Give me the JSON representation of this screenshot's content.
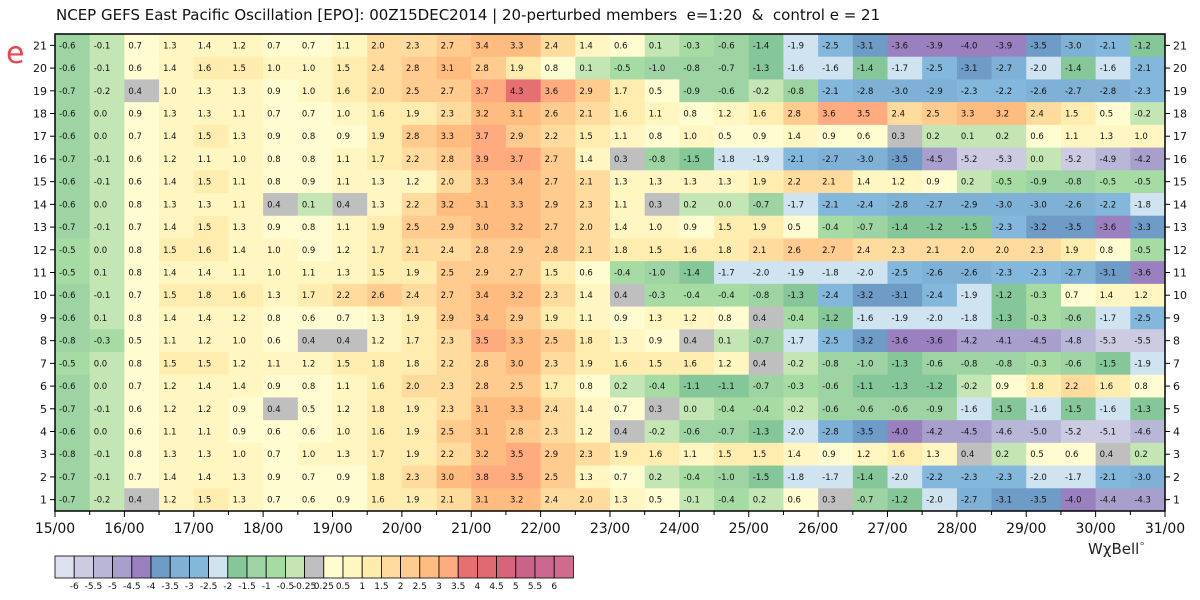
{
  "title": "NCEP GEFS East Pacific Oscillation [EPO]: 00Z15DEC2014 | 20-perturbed members  e=1:20  &  control e = 21",
  "y_axis_label": "e",
  "credit": {
    "text": "WχBell",
    "dot": "°"
  },
  "chart_data": {
    "type": "heatmap",
    "title": "NCEP GEFS East Pacific Oscillation [EPO]: 00Z15DEC2014 | 20-perturbed members  e=1:20  &  control e = 21",
    "xlabel": "",
    "ylabel": "e",
    "x_tick_labels": [
      "15/00",
      "16/00",
      "17/00",
      "18/00",
      "19/00",
      "20/00",
      "21/00",
      "22/00",
      "23/00",
      "24/00",
      "25/00",
      "26/00",
      "27/00",
      "28/00",
      "29/00",
      "30/00",
      "31/00"
    ],
    "y_tick_labels": [
      "1",
      "2",
      "3",
      "4",
      "5",
      "6",
      "7",
      "8",
      "9",
      "10",
      "11",
      "12",
      "13",
      "14",
      "15",
      "16",
      "17",
      "18",
      "19",
      "20",
      "21"
    ],
    "columns_per_day": 2,
    "rows_top_to_bottom": [
      21,
      20,
      19,
      18,
      17,
      16,
      15,
      14,
      13,
      12,
      11,
      10,
      9,
      8,
      7,
      6,
      5,
      4,
      3,
      2,
      1
    ],
    "values": [
      [
        -0.6,
        -0.1,
        0.7,
        1.3,
        1.4,
        1.2,
        0.7,
        0.7,
        1.1,
        2.0,
        2.3,
        2.7,
        3.4,
        3.3,
        2.4,
        1.4,
        0.6,
        0.1,
        -0.3,
        -0.6,
        -1.4,
        -1.9,
        -2.5,
        -3.1,
        -3.6,
        -3.9,
        -4.0,
        -3.9,
        -3.5,
        -3.0,
        -2.1,
        -1.2
      ],
      [
        -0.6,
        -0.1,
        0.6,
        1.4,
        1.6,
        1.5,
        1.0,
        1.0,
        1.5,
        2.4,
        2.8,
        3.1,
        2.8,
        1.9,
        0.8,
        0.1,
        -0.5,
        -1.0,
        -0.8,
        -0.7,
        -1.3,
        -1.6,
        -1.6,
        -1.4,
        -1.7,
        -2.5,
        -3.1,
        -2.7,
        -2.0,
        -1.4,
        -1.6,
        -2.1
      ],
      [
        -0.7,
        -0.2,
        0.4,
        1.0,
        1.3,
        1.3,
        0.9,
        1.0,
        1.6,
        2.0,
        2.5,
        2.7,
        3.7,
        4.3,
        3.6,
        2.9,
        1.7,
        0.5,
        -0.9,
        -0.6,
        -0.2,
        -0.8,
        -2.1,
        -2.8,
        -3.0,
        -2.9,
        -2.3,
        -2.2,
        -2.6,
        -2.7,
        -2.8,
        -2.3
      ],
      [
        -0.6,
        0.0,
        0.9,
        1.3,
        1.3,
        1.1,
        0.7,
        0.7,
        1.0,
        1.6,
        1.9,
        2.3,
        3.2,
        3.1,
        2.6,
        2.1,
        1.6,
        1.1,
        0.8,
        1.2,
        1.6,
        2.8,
        3.6,
        3.5,
        2.4,
        2.5,
        3.3,
        3.2,
        2.4,
        1.5,
        0.5,
        -0.2
      ],
      [
        -0.6,
        -0.0,
        0.7,
        1.4,
        1.5,
        1.3,
        0.9,
        0.8,
        0.9,
        1.9,
        2.8,
        3.3,
        3.7,
        2.9,
        2.2,
        1.5,
        1.1,
        0.8,
        1.0,
        0.5,
        0.9,
        1.4,
        0.9,
        0.6,
        0.3,
        0.2,
        0.1,
        0.2,
        0.6,
        1.1,
        1.3,
        1.0
      ],
      [
        -0.7,
        -0.1,
        0.6,
        1.2,
        1.1,
        1.0,
        0.8,
        0.8,
        1.1,
        1.7,
        2.2,
        2.8,
        3.9,
        3.7,
        2.7,
        1.4,
        0.3,
        -0.8,
        -1.5,
        -1.8,
        -1.9,
        -2.1,
        -2.7,
        -3.0,
        -3.5,
        -4.5,
        -5.2,
        -5.3,
        0.0,
        -5.2,
        -4.9,
        -4.2
      ],
      [
        -0.6,
        -0.1,
        0.6,
        1.4,
        1.5,
        1.1,
        0.8,
        0.9,
        1.1,
        1.3,
        1.2,
        2.0,
        3.3,
        3.4,
        2.7,
        2.1,
        1.3,
        1.3,
        1.3,
        1.3,
        1.9,
        2.2,
        2.1,
        1.4,
        1.2,
        0.9,
        0.2,
        -0.5,
        -0.9,
        -0.8,
        -0.5,
        -0.5
      ],
      [
        -0.6,
        0.0,
        0.8,
        1.3,
        1.3,
        1.1,
        0.4,
        0.1,
        0.4,
        1.3,
        2.2,
        3.2,
        3.1,
        3.3,
        2.9,
        2.3,
        1.1,
        0.3,
        0.2,
        -0.0,
        -0.7,
        -1.7,
        -2.1,
        -2.4,
        -2.8,
        -2.7,
        -2.9,
        -3.0,
        -3.0,
        -2.6,
        -2.2,
        -1.8
      ],
      [
        -0.7,
        -0.1,
        0.7,
        1.4,
        1.5,
        1.3,
        0.9,
        0.8,
        1.1,
        1.9,
        2.5,
        2.9,
        3.0,
        3.2,
        2.7,
        2.0,
        1.4,
        1.0,
        0.9,
        1.5,
        1.9,
        0.5,
        -0.4,
        -0.7,
        -1.4,
        -1.2,
        -1.5,
        -2.3,
        -3.2,
        -3.5,
        -3.6,
        -3.3
      ],
      [
        -0.5,
        0.0,
        0.8,
        1.5,
        1.6,
        1.4,
        1.0,
        0.9,
        1.2,
        1.7,
        2.1,
        2.4,
        2.8,
        2.9,
        2.8,
        2.1,
        1.8,
        1.5,
        1.6,
        1.8,
        2.1,
        2.6,
        2.7,
        2.4,
        2.3,
        2.1,
        2.0,
        2.0,
        2.3,
        1.9,
        0.8,
        -0.5
      ],
      [
        -0.5,
        0.1,
        0.8,
        1.4,
        1.4,
        1.1,
        1.0,
        1.1,
        1.3,
        1.5,
        1.9,
        2.5,
        2.9,
        2.7,
        1.5,
        0.6,
        -0.4,
        -1.0,
        -1.4,
        -1.7,
        -2.0,
        -1.9,
        -1.8,
        -2.0,
        -2.5,
        -2.6,
        -2.6,
        -2.3,
        -2.3,
        -2.7,
        -3.1,
        -3.6
      ],
      [
        -0.6,
        -0.1,
        0.7,
        1.5,
        1.8,
        1.6,
        1.3,
        1.7,
        2.2,
        2.6,
        2.4,
        2.7,
        3.4,
        3.2,
        2.3,
        1.4,
        0.4,
        -0.3,
        -0.4,
        -0.4,
        -0.8,
        -1.3,
        -2.4,
        -3.2,
        -3.1,
        -2.4,
        -1.9,
        -1.2,
        -0.3,
        0.7,
        1.4,
        1.2
      ],
      [
        -0.6,
        0.1,
        0.8,
        1.4,
        1.4,
        1.2,
        0.8,
        0.6,
        0.7,
        1.3,
        1.9,
        2.9,
        3.4,
        2.9,
        1.9,
        1.1,
        0.9,
        1.3,
        1.2,
        0.8,
        0.4,
        -0.4,
        -1.2,
        -1.6,
        -1.9,
        -2.0,
        -1.8,
        -1.3,
        -0.3,
        -0.6,
        -1.7,
        -2.5
      ],
      [
        -0.8,
        -0.3,
        0.5,
        1.1,
        1.2,
        1.0,
        0.6,
        0.4,
        0.4,
        1.2,
        1.7,
        2.3,
        3.5,
        3.3,
        2.5,
        1.8,
        1.3,
        0.9,
        0.4,
        0.1,
        -0.7,
        -1.7,
        -2.5,
        -3.2,
        -3.6,
        -3.6,
        -4.2,
        -4.1,
        -4.5,
        -4.8,
        -5.3,
        -5.5
      ],
      [
        -0.5,
        -0.0,
        0.8,
        1.5,
        1.5,
        1.2,
        1.1,
        1.2,
        1.5,
        1.8,
        1.8,
        2.2,
        2.8,
        3.0,
        2.3,
        1.9,
        1.6,
        1.5,
        1.6,
        1.2,
        0.4,
        -0.2,
        -0.8,
        -1.0,
        -1.3,
        -0.6,
        -0.8,
        -0.8,
        -0.3,
        -0.6,
        -1.5,
        -1.9
      ],
      [
        -0.6,
        -0.0,
        0.7,
        1.2,
        1.4,
        1.4,
        0.9,
        0.8,
        1.1,
        1.6,
        2.0,
        2.3,
        2.8,
        2.5,
        1.7,
        0.8,
        0.2,
        -0.4,
        -1.1,
        -1.1,
        -0.7,
        -0.3,
        -0.6,
        -1.1,
        -1.3,
        -1.2,
        -0.2,
        0.9,
        1.8,
        2.2,
        1.6,
        0.8
      ],
      [
        -0.7,
        -0.1,
        0.6,
        1.2,
        1.2,
        0.9,
        0.4,
        0.5,
        1.2,
        1.8,
        1.9,
        2.3,
        3.1,
        3.3,
        2.4,
        1.4,
        0.7,
        0.3,
        -0.0,
        -0.4,
        -0.4,
        -0.2,
        -0.6,
        -0.6,
        -0.6,
        -0.9,
        -1.6,
        -1.5,
        -1.6,
        -1.5,
        -1.6,
        -1.3
      ],
      [
        -0.6,
        -0.0,
        0.6,
        1.1,
        1.1,
        0.9,
        0.6,
        0.6,
        1.0,
        1.6,
        1.9,
        2.5,
        3.1,
        2.8,
        2.3,
        1.2,
        0.4,
        -0.2,
        -0.6,
        -0.7,
        -1.3,
        -2.0,
        -2.8,
        -3.5,
        -4.0,
        -4.2,
        -4.5,
        -4.6,
        -5.0,
        -5.2,
        -5.1,
        -4.6
      ],
      [
        -0.8,
        -0.1,
        0.8,
        1.3,
        1.3,
        1.0,
        0.7,
        1.0,
        1.3,
        1.7,
        1.9,
        2.2,
        3.2,
        3.5,
        2.9,
        2.3,
        1.9,
        1.6,
        1.1,
        1.5,
        1.5,
        1.4,
        0.9,
        1.2,
        1.6,
        1.3,
        0.4,
        0.2,
        0.5,
        0.6,
        0.4,
        0.2
      ],
      [
        -0.7,
        -0.1,
        0.7,
        1.4,
        1.4,
        1.3,
        0.9,
        0.7,
        0.9,
        1.8,
        2.3,
        3.0,
        3.8,
        3.5,
        2.5,
        1.3,
        0.7,
        0.2,
        -0.4,
        -1.0,
        -1.5,
        -1.8,
        -1.7,
        -1.4,
        -2.0,
        -2.2,
        -2.3,
        -2.3,
        -2.0,
        -1.7,
        -2.1,
        -3.0
      ],
      [
        -0.7,
        -0.2,
        0.4,
        1.2,
        1.5,
        1.3,
        0.7,
        0.6,
        0.9,
        1.6,
        1.9,
        2.1,
        3.1,
        3.2,
        2.4,
        2.0,
        1.3,
        0.5,
        -0.1,
        -0.4,
        0.2,
        0.6,
        0.3,
        -0.7,
        -1.2,
        -2.0,
        -2.7,
        -3.1,
        -3.5,
        -4.0,
        -4.4,
        -4.3
      ]
    ],
    "colorbar": {
      "tick_labels": [
        "-6",
        "-5.5",
        "-5",
        "-4.5",
        "-4",
        "-3.5",
        "-3",
        "-2.5",
        "-2",
        "-1.5",
        "-1",
        "-0.5",
        "-0.25",
        "0.25",
        "0.5",
        "1",
        "1.5",
        "2",
        "2.5",
        "3",
        "3.5",
        "4",
        "4.5",
        "5",
        "5.5",
        "6"
      ],
      "bounds": [
        -6,
        -5.5,
        -5,
        -4.5,
        -4,
        -3.5,
        -3,
        -2.5,
        -2,
        -1.5,
        -1,
        -0.5,
        -0.25,
        0.25,
        0.5,
        1,
        1.5,
        2,
        2.5,
        3,
        3.5,
        4,
        4.5,
        5,
        5.5,
        6
      ],
      "colors": [
        "#dfe0ee",
        "#cccbe2",
        "#b9b7d8",
        "#a99fcd",
        "#9a80bf",
        "#6f9bc7",
        "#7fb1d7",
        "#84b7dc",
        "#cfe3f0",
        "#86c79a",
        "#9ed4a3",
        "#a7dba4",
        "#c4e5b4",
        "#bfbfbf",
        "#fffcd2",
        "#fff6c2",
        "#ffedb0",
        "#ffdc9e",
        "#ffcb8e",
        "#ffbc80",
        "#ffab80",
        "#e66f72",
        "#e06a72",
        "#d6657a",
        "#c96488",
        "#cc6890",
        "#d06b8e"
      ]
    },
    "zlim": [
      -6,
      6
    ],
    "grid": false,
    "legend": "bottom-left colorbar"
  }
}
